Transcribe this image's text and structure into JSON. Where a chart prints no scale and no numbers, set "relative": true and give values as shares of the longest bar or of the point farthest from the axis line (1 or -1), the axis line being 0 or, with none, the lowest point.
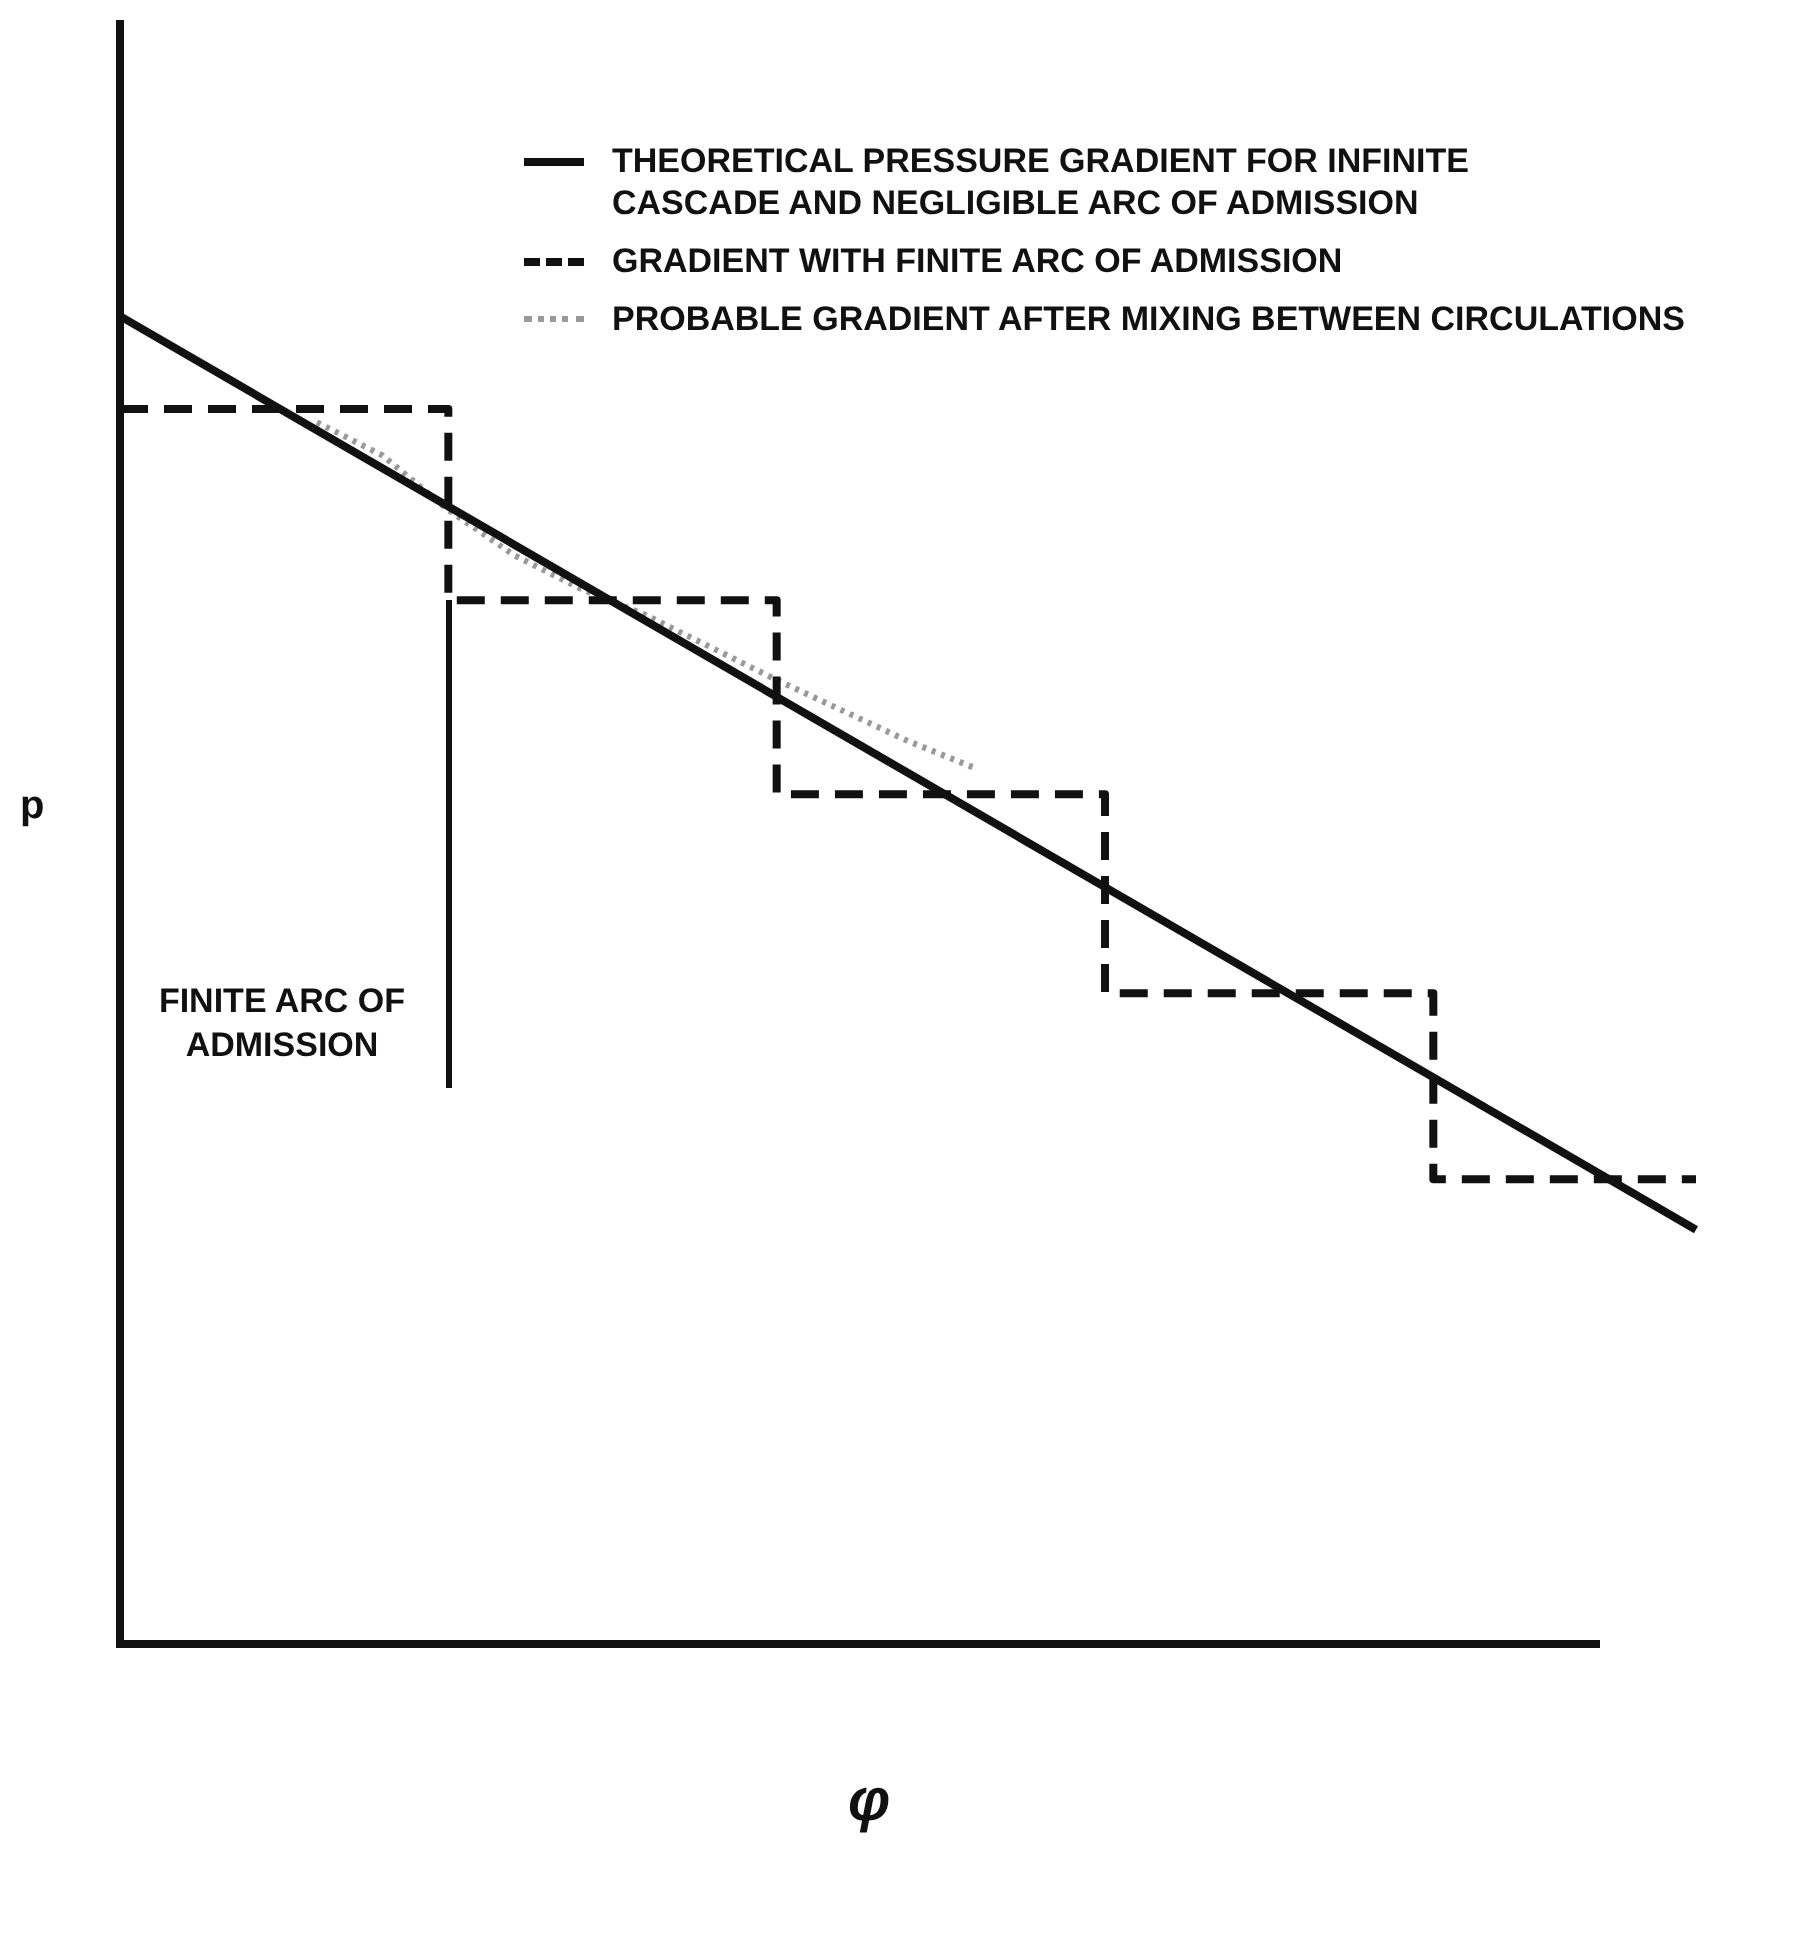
{
  "chart_data": {
    "type": "line",
    "relative": true,
    "xlabel": "φ",
    "ylabel": "p",
    "tick_labels": false,
    "marker": "none",
    "legend": "top right",
    "categories": [
      null,
      null,
      null,
      null,
      null,
      null,
      null,
      null,
      null,
      null,
      null,
      null,
      null,
      null,
      null,
      null,
      null,
      null,
      null,
      null,
      null,
      null,
      null,
      null,
      null
    ],
    "series": [
      {
        "name": "THEORETICAL PRESSURE GRADIENT FOR INFINITE CASCADE AND NEGLIGIBLE ARC OF ADMISSION",
        "color": "#111111",
        "line_style": "solid",
        "values": [
          1,
          null,
          null,
          null,
          null,
          null,
          null,
          null,
          null,
          null,
          null,
          null,
          null,
          null,
          null,
          null,
          null,
          null,
          null,
          null,
          null,
          null,
          null,
          null,
          0.312
        ]
      },
      {
        "name": "GRADIENT WITH FINITE ARC OF ADMISSION",
        "type": "step",
        "color": "#111111",
        "line_style": "dashed",
        "values": [
          0.93,
          null,
          null,
          null,
          null,
          0.786,
          null,
          null,
          null,
          null,
          0.64,
          null,
          null,
          null,
          null,
          0.49,
          null,
          null,
          null,
          null,
          0.35,
          null,
          null,
          null,
          0.35
        ]
      },
      {
        "name": "PROBABLE GRADIENT AFTER MIXING BETWEEN CIRCULATIONS",
        "color": "#999999",
        "line_style": "dotted",
        "values": [
          null,
          null,
          null,
          0.92,
          0.895,
          0.854,
          0.82,
          0.795,
          0.775,
          null,
          0.726,
          null,
          0.68,
          0.66,
          null,
          null,
          null,
          null,
          null,
          null,
          null,
          null,
          null,
          null,
          null
        ]
      }
    ],
    "annotations": [
      "FINITE ARC OF ADMISSION"
    ]
  }
}
